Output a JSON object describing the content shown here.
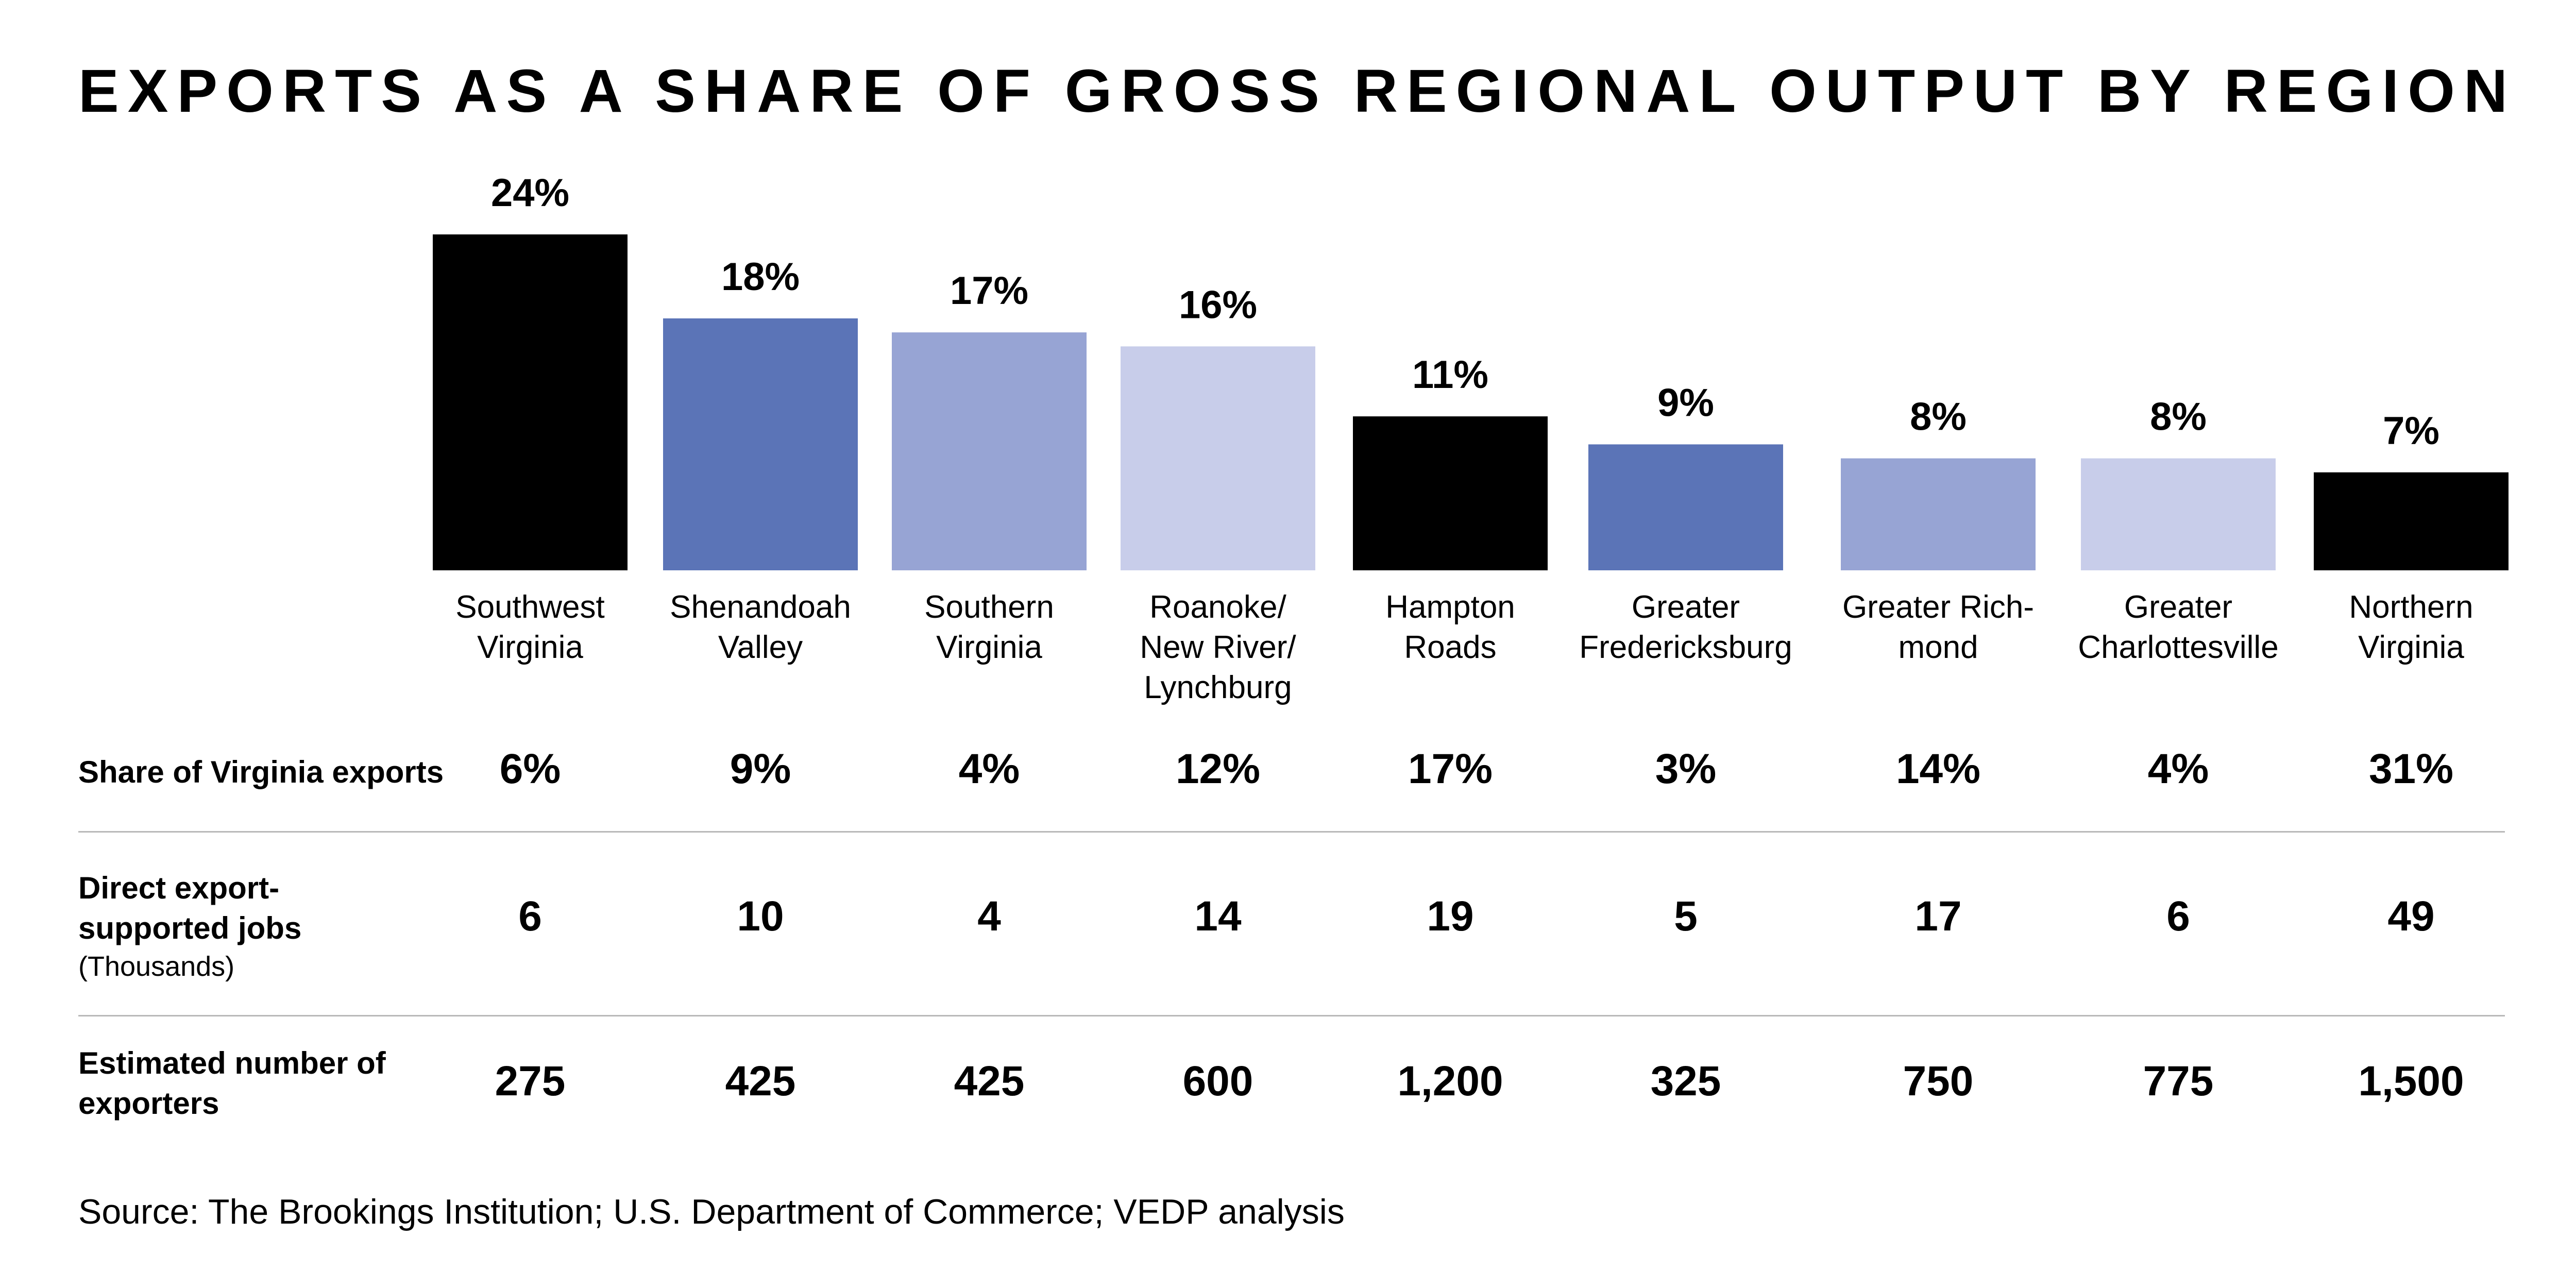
{
  "chart_data": {
    "type": "bar",
    "title": "EXPORTS AS A SHARE OF GROSS REGIONAL OUTPUT BY REGION",
    "categories": [
      "Southwest Virginia",
      "Shenandoah Valley",
      "Southern Virginia",
      "Roanoke/ New River/ Lynchburg",
      "Hampton Roads",
      "Greater Fredericksburg",
      "Greater Rich- mond",
      "Greater Charlottesville",
      "Northern Virginia"
    ],
    "values": [
      24,
      18,
      17,
      16,
      11,
      9,
      8,
      8,
      7
    ],
    "data_labels": [
      "24%",
      "18%",
      "17%",
      "16%",
      "11%",
      "9%",
      "8%",
      "8%",
      "7%"
    ],
    "bar_colors": [
      "#000000",
      "#5b74b7",
      "#97a4d4",
      "#c8cdea",
      "#000000",
      "#5b74b7",
      "#97a4d4",
      "#c8cdea",
      "#000000"
    ],
    "ylim": [
      0,
      24
    ],
    "grid": false,
    "legend": "none"
  },
  "table": {
    "rows": [
      {
        "label": "Share of Virginia exports",
        "sublabel": "",
        "values": [
          "6%",
          "9%",
          "4%",
          "12%",
          "17%",
          "3%",
          "14%",
          "4%",
          "31%"
        ]
      },
      {
        "label": "Direct export-supported jobs",
        "sublabel": "(Thousands)",
        "values": [
          "6",
          "10",
          "4",
          "14",
          "19",
          "5",
          "17",
          "6",
          "49"
        ]
      },
      {
        "label": "Estimated number of exporters",
        "sublabel": "",
        "values": [
          "275",
          "425",
          "425",
          "600",
          "1,200",
          "325",
          "750",
          "775",
          "1,500"
        ]
      }
    ]
  },
  "source": "Source: The Brookings Institution; U.S. Department of Commerce; VEDP analysis"
}
